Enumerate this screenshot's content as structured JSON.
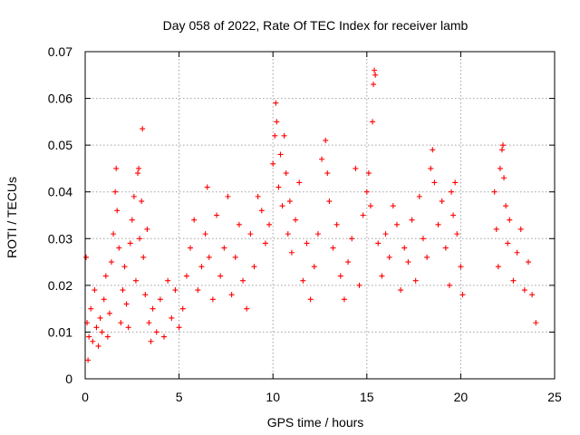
{
  "chart_data": {
    "type": "scatter",
    "title": "Day 058 of 2022, Rate Of TEC Index for receiver lamb",
    "xlabel": "GPS time / hours",
    "ylabel": "ROTI / TECUs",
    "xlim": [
      0,
      25
    ],
    "ylim": [
      0,
      0.07
    ],
    "xticks": [
      "0",
      "5",
      "10",
      "15",
      "20",
      "25"
    ],
    "yticks": [
      "0",
      "0.01",
      "0.02",
      "0.03",
      "0.04",
      "0.05",
      "0.06",
      "0.07"
    ],
    "grid": true,
    "marker": "+",
    "color": "#ff0000",
    "series": [
      {
        "points": [
          [
            0.05,
            0.026
          ],
          [
            0.1,
            0.012
          ],
          [
            0.15,
            0.004
          ],
          [
            0.2,
            0.009
          ],
          [
            0.3,
            0.015
          ],
          [
            0.4,
            0.008
          ],
          [
            0.5,
            0.019
          ],
          [
            0.6,
            0.011
          ],
          [
            0.7,
            0.007
          ],
          [
            0.8,
            0.013
          ],
          [
            0.9,
            0.01
          ],
          [
            1.0,
            0.017
          ],
          [
            1.1,
            0.022
          ],
          [
            1.2,
            0.009
          ],
          [
            1.3,
            0.014
          ],
          [
            1.4,
            0.025
          ],
          [
            1.5,
            0.031
          ],
          [
            1.6,
            0.04
          ],
          [
            1.65,
            0.045
          ],
          [
            1.7,
            0.036
          ],
          [
            1.8,
            0.028
          ],
          [
            1.9,
            0.012
          ],
          [
            2.0,
            0.019
          ],
          [
            2.1,
            0.024
          ],
          [
            2.2,
            0.016
          ],
          [
            2.3,
            0.011
          ],
          [
            2.4,
            0.029
          ],
          [
            2.5,
            0.034
          ],
          [
            2.6,
            0.039
          ],
          [
            2.7,
            0.021
          ],
          [
            2.8,
            0.044
          ],
          [
            2.85,
            0.045
          ],
          [
            2.9,
            0.03
          ],
          [
            3.0,
            0.038
          ],
          [
            3.05,
            0.0535
          ],
          [
            3.1,
            0.026
          ],
          [
            3.2,
            0.018
          ],
          [
            3.3,
            0.032
          ],
          [
            3.4,
            0.012
          ],
          [
            3.5,
            0.008
          ],
          [
            3.6,
            0.015
          ],
          [
            3.8,
            0.01
          ],
          [
            4.0,
            0.017
          ],
          [
            4.2,
            0.009
          ],
          [
            4.4,
            0.021
          ],
          [
            4.6,
            0.013
          ],
          [
            4.8,
            0.019
          ],
          [
            5.0,
            0.011
          ],
          [
            5.2,
            0.015
          ],
          [
            5.4,
            0.022
          ],
          [
            5.6,
            0.028
          ],
          [
            5.8,
            0.034
          ],
          [
            6.0,
            0.019
          ],
          [
            6.2,
            0.024
          ],
          [
            6.4,
            0.031
          ],
          [
            6.5,
            0.041
          ],
          [
            6.6,
            0.026
          ],
          [
            6.8,
            0.017
          ],
          [
            7.0,
            0.035
          ],
          [
            7.2,
            0.022
          ],
          [
            7.4,
            0.028
          ],
          [
            7.6,
            0.039
          ],
          [
            7.8,
            0.018
          ],
          [
            8.0,
            0.026
          ],
          [
            8.2,
            0.033
          ],
          [
            8.4,
            0.021
          ],
          [
            8.6,
            0.015
          ],
          [
            8.8,
            0.031
          ],
          [
            9.0,
            0.024
          ],
          [
            9.2,
            0.039
          ],
          [
            9.4,
            0.036
          ],
          [
            9.6,
            0.029
          ],
          [
            9.8,
            0.033
          ],
          [
            10.0,
            0.046
          ],
          [
            10.1,
            0.052
          ],
          [
            10.15,
            0.059
          ],
          [
            10.2,
            0.055
          ],
          [
            10.3,
            0.041
          ],
          [
            10.4,
            0.048
          ],
          [
            10.5,
            0.037
          ],
          [
            10.6,
            0.052
          ],
          [
            10.7,
            0.044
          ],
          [
            10.8,
            0.031
          ],
          [
            10.9,
            0.038
          ],
          [
            11.0,
            0.027
          ],
          [
            11.2,
            0.034
          ],
          [
            11.4,
            0.042
          ],
          [
            11.6,
            0.021
          ],
          [
            11.8,
            0.029
          ],
          [
            12.0,
            0.017
          ],
          [
            12.2,
            0.024
          ],
          [
            12.4,
            0.031
          ],
          [
            12.6,
            0.047
          ],
          [
            12.8,
            0.051
          ],
          [
            12.9,
            0.044
          ],
          [
            13.0,
            0.038
          ],
          [
            13.2,
            0.028
          ],
          [
            13.4,
            0.033
          ],
          [
            13.6,
            0.022
          ],
          [
            13.8,
            0.017
          ],
          [
            14.0,
            0.025
          ],
          [
            14.2,
            0.03
          ],
          [
            14.4,
            0.045
          ],
          [
            14.6,
            0.02
          ],
          [
            14.8,
            0.035
          ],
          [
            15.0,
            0.04
          ],
          [
            15.1,
            0.044
          ],
          [
            15.2,
            0.037
          ],
          [
            15.3,
            0.055
          ],
          [
            15.35,
            0.063
          ],
          [
            15.4,
            0.066
          ],
          [
            15.45,
            0.065
          ],
          [
            15.6,
            0.029
          ],
          [
            15.8,
            0.022
          ],
          [
            16.0,
            0.031
          ],
          [
            16.2,
            0.026
          ],
          [
            16.4,
            0.037
          ],
          [
            16.6,
            0.033
          ],
          [
            16.8,
            0.019
          ],
          [
            17.0,
            0.028
          ],
          [
            17.2,
            0.025
          ],
          [
            17.4,
            0.034
          ],
          [
            17.6,
            0.021
          ],
          [
            17.8,
            0.039
          ],
          [
            18.0,
            0.03
          ],
          [
            18.2,
            0.026
          ],
          [
            18.4,
            0.045
          ],
          [
            18.5,
            0.049
          ],
          [
            18.6,
            0.042
          ],
          [
            18.8,
            0.033
          ],
          [
            19.0,
            0.038
          ],
          [
            19.2,
            0.028
          ],
          [
            19.4,
            0.02
          ],
          [
            19.5,
            0.04
          ],
          [
            19.6,
            0.035
          ],
          [
            19.7,
            0.042
          ],
          [
            19.8,
            0.031
          ],
          [
            20.0,
            0.024
          ],
          [
            20.1,
            0.018
          ],
          [
            21.8,
            0.04
          ],
          [
            21.9,
            0.032
          ],
          [
            22.0,
            0.024
          ],
          [
            22.1,
            0.045
          ],
          [
            22.2,
            0.049
          ],
          [
            22.25,
            0.05
          ],
          [
            22.3,
            0.043
          ],
          [
            22.4,
            0.037
          ],
          [
            22.5,
            0.029
          ],
          [
            22.6,
            0.034
          ],
          [
            22.8,
            0.021
          ],
          [
            23.0,
            0.027
          ],
          [
            23.2,
            0.032
          ],
          [
            23.4,
            0.019
          ],
          [
            23.6,
            0.025
          ],
          [
            23.8,
            0.018
          ],
          [
            24.0,
            0.012
          ]
        ]
      }
    ]
  }
}
